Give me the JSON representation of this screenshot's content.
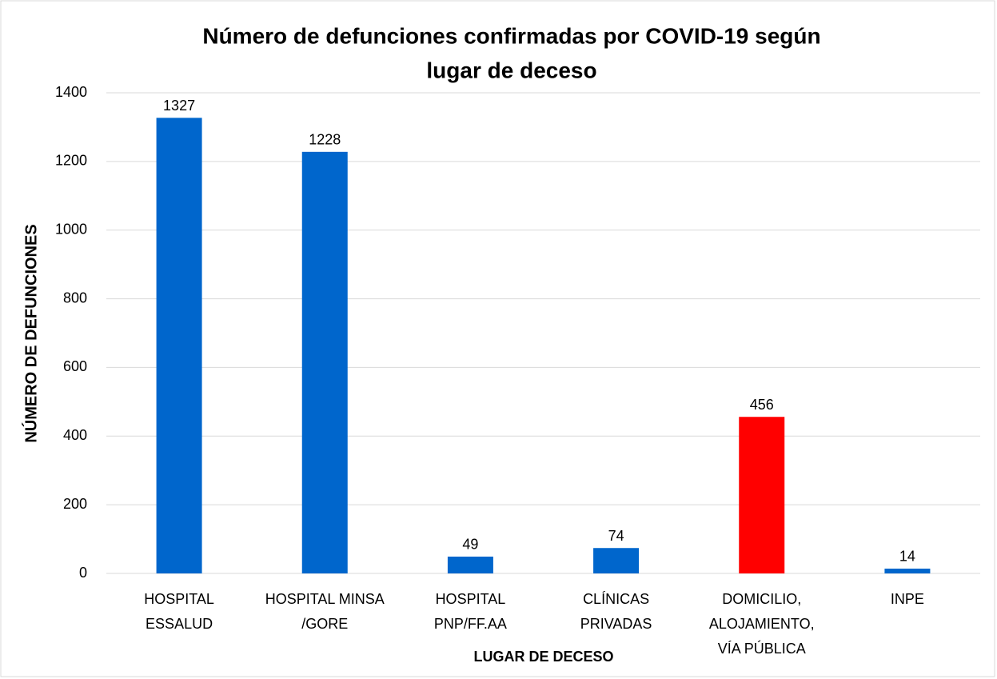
{
  "chart_data": {
    "type": "bar",
    "title": [
      "Número de defunciones confirmadas por COVID-19 según",
      "lugar de deceso"
    ],
    "x_label": "LUGAR DE DECESO",
    "y_label": "NÚMERO DE DEFUNCIONES",
    "categories": [
      [
        "HOSPITAL",
        "ESSALUD"
      ],
      [
        "HOSPITAL MINSA",
        "/GORE"
      ],
      [
        "HOSPITAL",
        "PNP/FF.AA"
      ],
      [
        "CLÍNICAS",
        "PRIVADAS"
      ],
      [
        "DOMICILIO,",
        "ALOJAMIENTO,",
        "VÍA PÚBLICA"
      ],
      [
        "INPE"
      ]
    ],
    "values": [
      1327,
      1228,
      49,
      74,
      456,
      14
    ],
    "colors": [
      "#0066cc",
      "#0066cc",
      "#0066cc",
      "#0066cc",
      "#ff0000",
      "#0066cc"
    ],
    "ylim": [
      0,
      1400
    ],
    "yticks": [
      0,
      200,
      400,
      600,
      800,
      1000,
      1200,
      1400
    ],
    "grid": true
  }
}
